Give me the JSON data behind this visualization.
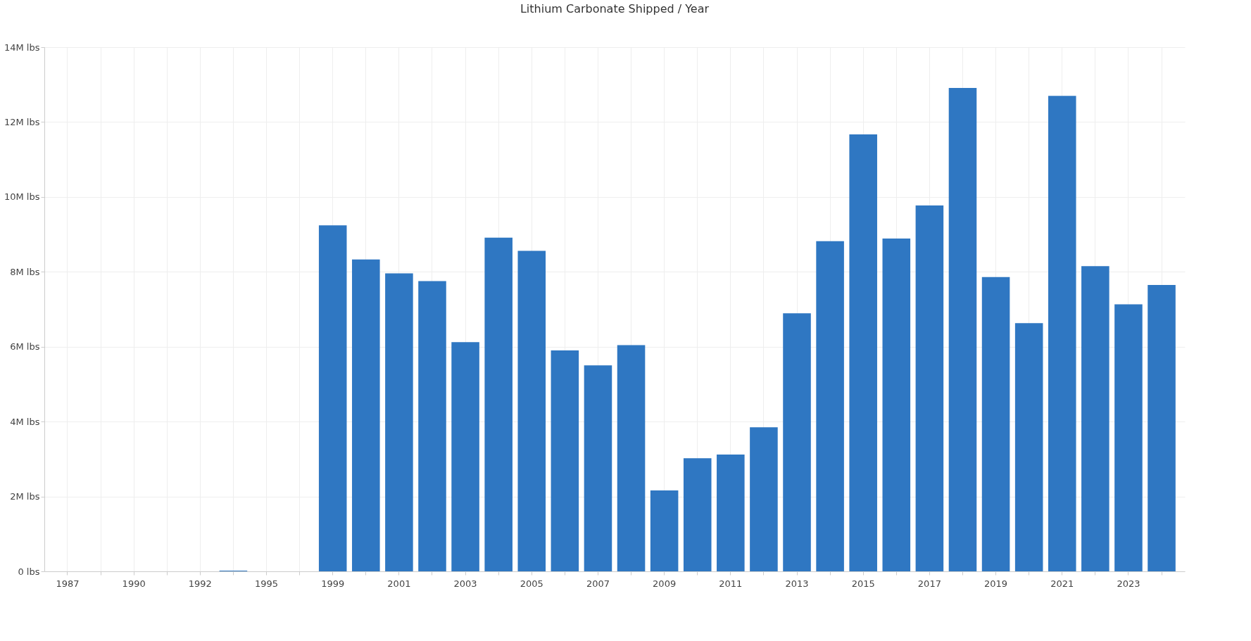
{
  "chart_data": {
    "type": "bar",
    "title": "Lithium Carbonate Shipped / Year",
    "categories": [
      "1987",
      null,
      "1990",
      null,
      "1992",
      null,
      "1995",
      null,
      "1999",
      null,
      "2001",
      null,
      "2003",
      null,
      "2005",
      null,
      "2007",
      null,
      "2009",
      null,
      "2011",
      null,
      "2013",
      null,
      "2015",
      null,
      "2017",
      null,
      "2019",
      null,
      "2021",
      null,
      "2023",
      null
    ],
    "values": [
      0,
      0,
      0,
      0,
      0,
      0.02,
      0,
      0,
      9.24,
      8.33,
      7.96,
      7.75,
      6.12,
      8.91,
      8.56,
      5.9,
      5.5,
      6.04,
      2.16,
      3.02,
      3.12,
      3.85,
      6.89,
      8.82,
      11.67,
      8.89,
      9.77,
      12.91,
      7.86,
      6.63,
      12.7,
      8.15,
      7.13,
      7.65
    ],
    "color": "#2f77c2",
    "ylim": [
      0,
      14
    ],
    "yticks": [
      {
        "value": 0,
        "label": "0 lbs"
      },
      {
        "value": 2,
        "label": "2M lbs"
      },
      {
        "value": 4,
        "label": "4M lbs"
      },
      {
        "value": 6,
        "label": "6M lbs"
      },
      {
        "value": 8,
        "label": "8M lbs"
      },
      {
        "value": 10,
        "label": "10M lbs"
      },
      {
        "value": 12,
        "label": "12M lbs"
      },
      {
        "value": 14,
        "label": "14M lbs"
      }
    ],
    "grid": true
  }
}
